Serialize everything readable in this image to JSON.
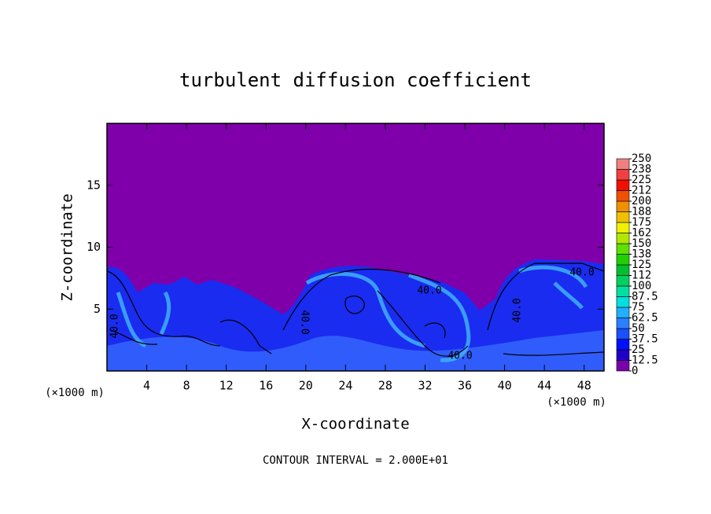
{
  "chart_data": {
    "type": "contour",
    "title": "turbulent diffusion coefficient",
    "xlabel": "X-coordinate",
    "ylabel": "Z-coordinate",
    "unit_labels": [
      "(×1000 m)",
      "(×1000 m)"
    ],
    "xlim": [
      0,
      50
    ],
    "ylim": [
      0,
      20
    ],
    "xticks": [
      4,
      8,
      12,
      16,
      20,
      24,
      28,
      32,
      36,
      40,
      44,
      48
    ],
    "yticks": [
      5,
      10,
      15
    ],
    "contour_labels": [
      "40.0",
      "40.0",
      "40.0",
      "40.0",
      "40.0",
      "40.0"
    ],
    "contour_interval_label": "CONTOUR INTERVAL = 2.000E+01",
    "colorbar": {
      "ticks": [
        0,
        12.5,
        25,
        37.5,
        50,
        62.5,
        75,
        87.5,
        100,
        {
          "value": 112.5,
          "label": "112"
        },
        125,
        {
          "value": 137.5,
          "label": "138"
        },
        150,
        {
          "value": 162.5,
          "label": "162"
        },
        175,
        {
          "value": 187.5,
          "label": "188"
        },
        200,
        {
          "value": 212.5,
          "label": "212"
        },
        225,
        {
          "value": 237.5,
          "label": "238"
        },
        250
      ],
      "colors": [
        "#7a00aa",
        "#2000c8",
        "#0010ff",
        "#1a50ff",
        "#2a80ff",
        "#20b0ff",
        "#00e0e0",
        "#00e0a0",
        "#00d060",
        "#00c030",
        "#20d000",
        "#60e000",
        "#b0e800",
        "#f0f000",
        "#f0c000",
        "#f09000",
        "#f05000",
        "#f01000",
        "#f04040",
        "#f08080"
      ]
    }
  }
}
